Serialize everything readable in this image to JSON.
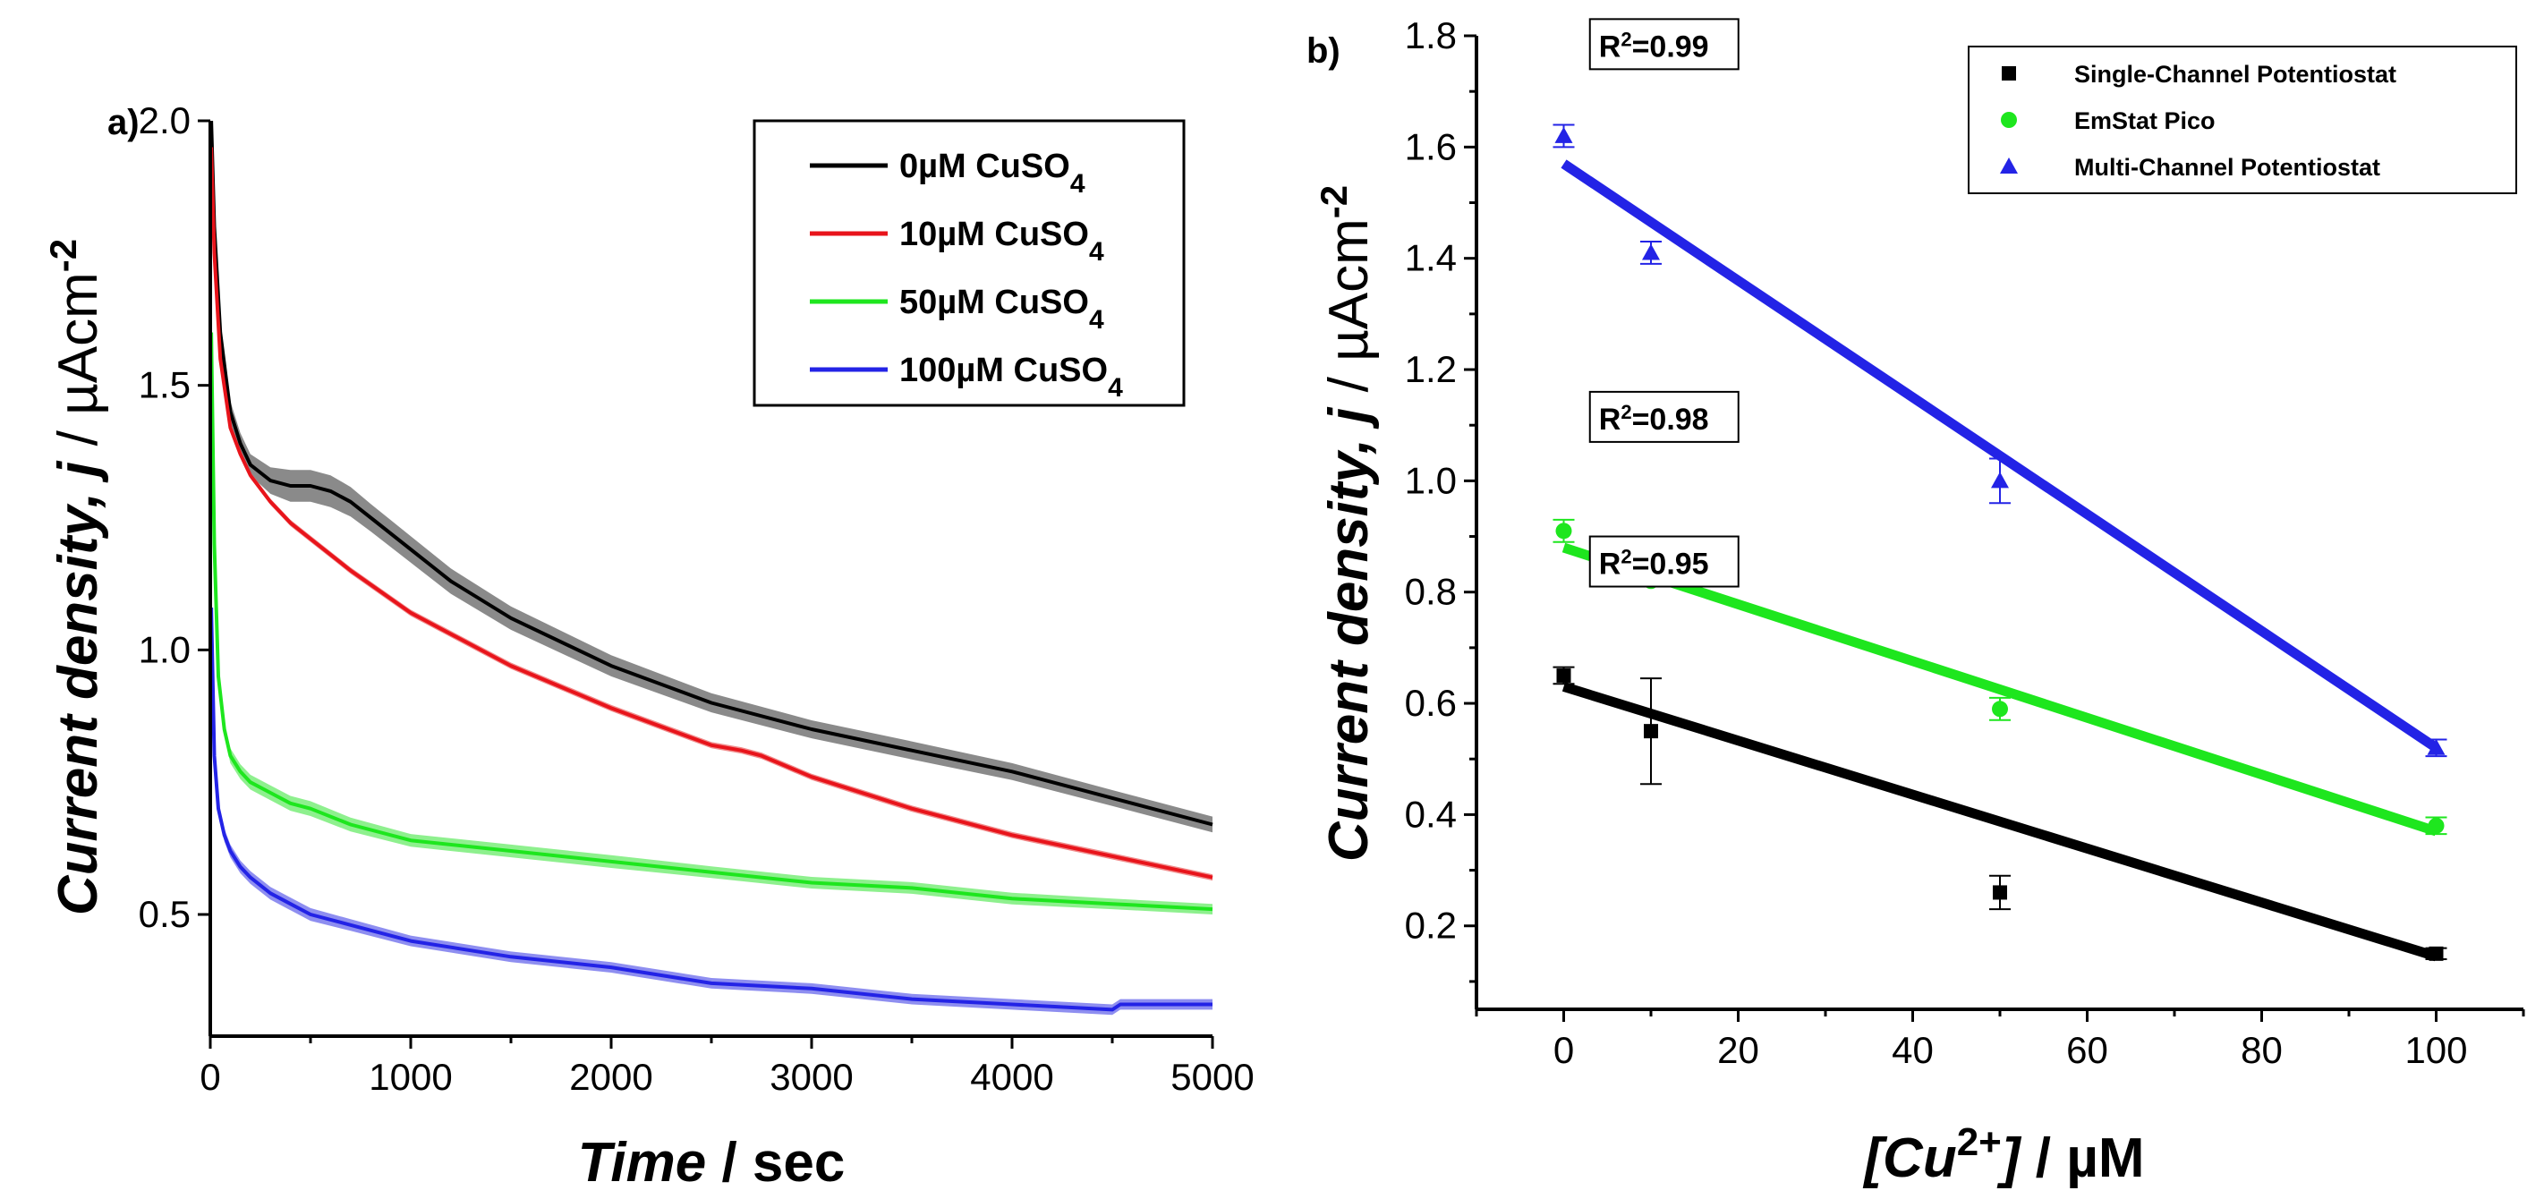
{
  "colors": {
    "black": "#000000",
    "red": "#e8141b",
    "green": "#1ee61e",
    "blue": "#2323e6",
    "band_black": "#8a8a8a",
    "band_red": "#f08a8a",
    "band_green": "#8ef08e",
    "band_blue": "#8e8ef0"
  },
  "chart_data": [
    {
      "type": "line",
      "panel_label": "a)",
      "xlabel_main": "Time",
      "xlabel_unit": " / sec",
      "ylabel_main": "Current density, ",
      "ylabel_var": "j",
      "ylabel_unit": " / µAcm",
      "ylabel_exp": "-2",
      "xlim": [
        0,
        5000
      ],
      "ylim": [
        0.27,
        2.0
      ],
      "xticks": [
        0,
        1000,
        2000,
        3000,
        4000,
        5000
      ],
      "yticks": [
        0.5,
        1.0,
        1.5,
        2.0
      ],
      "xtick_labels": [
        "0",
        "1000",
        "2000",
        "3000",
        "4000",
        "5000"
      ],
      "ytick_labels": [
        "0.5",
        "1.0",
        "1.5",
        "2.0"
      ],
      "legend": [
        {
          "label": "0µM CuSO",
          "sub": "4",
          "color": "#000000"
        },
        {
          "label": "10µM CuSO",
          "sub": "4",
          "color": "#e8141b"
        },
        {
          "label": "50µM CuSO",
          "sub": "4",
          "color": "#1ee61e"
        },
        {
          "label": "100µM CuSO",
          "sub": "4",
          "color": "#2323e6"
        }
      ],
      "series": [
        {
          "name": "0µM CuSO4",
          "color": "#000000",
          "band": "#8a8a8a",
          "x": [
            5,
            20,
            50,
            100,
            150,
            200,
            300,
            400,
            500,
            600,
            700,
            800,
            1000,
            1200,
            1500,
            2000,
            2500,
            3000,
            3500,
            4000,
            4500,
            5000
          ],
          "y": [
            2.0,
            1.8,
            1.6,
            1.45,
            1.39,
            1.35,
            1.32,
            1.31,
            1.31,
            1.3,
            1.28,
            1.25,
            1.19,
            1.13,
            1.06,
            0.97,
            0.9,
            0.85,
            0.81,
            0.77,
            0.72,
            0.67
          ],
          "err": [
            0,
            0.005,
            0.01,
            0.02,
            0.02,
            0.02,
            0.025,
            0.03,
            0.03,
            0.03,
            0.028,
            0.026,
            0.025,
            0.024,
            0.022,
            0.02,
            0.018,
            0.017,
            0.017,
            0.016,
            0.015,
            0.015
          ]
        },
        {
          "name": "10µM CuSO4",
          "color": "#e8141b",
          "band": "#f08a8a",
          "x": [
            5,
            20,
            50,
            100,
            150,
            200,
            300,
            400,
            500,
            700,
            1000,
            1500,
            2000,
            2500,
            2650,
            2750,
            3000,
            3500,
            4000,
            4500,
            5000
          ],
          "y": [
            1.95,
            1.75,
            1.55,
            1.42,
            1.37,
            1.33,
            1.28,
            1.24,
            1.21,
            1.15,
            1.07,
            0.97,
            0.89,
            0.82,
            0.81,
            0.8,
            0.76,
            0.7,
            0.65,
            0.61,
            0.57
          ],
          "err": [
            0,
            0.004,
            0.006,
            0.006,
            0.006,
            0.006,
            0.006,
            0.006,
            0.006,
            0.006,
            0.006,
            0.006,
            0.006,
            0.006,
            0.006,
            0.006,
            0.006,
            0.006,
            0.006,
            0.006,
            0.006
          ]
        },
        {
          "name": "50µM CuSO4",
          "color": "#1ee61e",
          "band": "#8ef08e",
          "x": [
            5,
            20,
            40,
            70,
            100,
            150,
            200,
            300,
            400,
            500,
            700,
            1000,
            1500,
            2000,
            2500,
            3000,
            3500,
            4000,
            4500,
            5000
          ],
          "y": [
            1.6,
            1.2,
            0.95,
            0.85,
            0.8,
            0.77,
            0.75,
            0.73,
            0.71,
            0.7,
            0.67,
            0.64,
            0.62,
            0.6,
            0.58,
            0.56,
            0.55,
            0.53,
            0.52,
            0.51
          ],
          "err": [
            0,
            0.006,
            0.01,
            0.012,
            0.014,
            0.014,
            0.014,
            0.014,
            0.014,
            0.014,
            0.013,
            0.012,
            0.012,
            0.012,
            0.011,
            0.011,
            0.011,
            0.011,
            0.01,
            0.01
          ]
        },
        {
          "name": "100µM CuSO4",
          "color": "#2323e6",
          "band": "#8e8ef0",
          "x": [
            5,
            20,
            40,
            70,
            100,
            150,
            200,
            300,
            400,
            500,
            700,
            1000,
            1500,
            2000,
            2500,
            3000,
            3500,
            4000,
            4500,
            4540,
            5000
          ],
          "y": [
            1.08,
            0.8,
            0.7,
            0.65,
            0.62,
            0.59,
            0.57,
            0.54,
            0.52,
            0.5,
            0.48,
            0.45,
            0.42,
            0.4,
            0.37,
            0.36,
            0.34,
            0.33,
            0.32,
            0.33,
            0.33
          ],
          "err": [
            0,
            0.006,
            0.01,
            0.012,
            0.012,
            0.012,
            0.012,
            0.012,
            0.012,
            0.012,
            0.011,
            0.01,
            0.01,
            0.01,
            0.01,
            0.01,
            0.01,
            0.01,
            0.01,
            0.01,
            0.01
          ]
        }
      ]
    },
    {
      "type": "scatter",
      "panel_label": "b)",
      "xlabel_main": "[Cu",
      "xlabel_sup": "2+",
      "xlabel_close": "]",
      "xlabel_unit": " / µM",
      "ylabel_main": "Current density, ",
      "ylabel_var": "j",
      "ylabel_unit": " / µAcm",
      "ylabel_exp": "-2",
      "xlim": [
        -10,
        110
      ],
      "ylim": [
        0.05,
        1.8
      ],
      "xticks": [
        0,
        20,
        40,
        60,
        80,
        100
      ],
      "yticks": [
        0.2,
        0.4,
        0.6,
        0.8,
        1.0,
        1.2,
        1.4,
        1.6,
        1.8
      ],
      "xtick_labels": [
        "0",
        "20",
        "40",
        "60",
        "80",
        "100"
      ],
      "ytick_labels": [
        "0.2",
        "0.4",
        "0.6",
        "0.8",
        "1.0",
        "1.2",
        "1.4",
        "1.6",
        "1.8"
      ],
      "legend": [
        {
          "label": "Single-Channel Potentiostat",
          "marker": "square",
          "color": "#000000"
        },
        {
          "label": "EmStat Pico",
          "marker": "circle",
          "color": "#1ee61e"
        },
        {
          "label": "Multi-Channel Potentiostat",
          "marker": "triangle",
          "color": "#2323e6"
        }
      ],
      "series": [
        {
          "name": "Single-Channel Potentiostat",
          "marker": "square",
          "color": "#000000",
          "x": [
            0,
            10,
            50,
            100
          ],
          "y": [
            0.65,
            0.55,
            0.26,
            0.15
          ],
          "err": [
            0.015,
            0.095,
            0.03,
            0.01
          ],
          "fit": {
            "x": [
              0,
              100
            ],
            "y": [
              0.63,
              0.145
            ]
          },
          "r2_text": "=0.95",
          "r2_anchor": [
            3,
            0.9
          ]
        },
        {
          "name": "EmStat Pico",
          "marker": "circle",
          "color": "#1ee61e",
          "x": [
            0,
            10,
            50,
            100
          ],
          "y": [
            0.91,
            0.82,
            0.59,
            0.38
          ],
          "err": [
            0.02,
            0.01,
            0.02,
            0.015
          ],
          "fit": {
            "x": [
              0,
              100
            ],
            "y": [
              0.88,
              0.37
            ]
          },
          "r2_text": "=0.98",
          "r2_anchor": [
            3,
            1.16
          ]
        },
        {
          "name": "Multi-Channel Potentiostat",
          "marker": "triangle",
          "color": "#2323e6",
          "x": [
            0,
            10,
            50,
            100
          ],
          "y": [
            1.62,
            1.41,
            1.0,
            0.52
          ],
          "err": [
            0.02,
            0.02,
            0.04,
            0.015
          ],
          "fit": {
            "x": [
              0,
              100
            ],
            "y": [
              1.57,
              0.52
            ]
          },
          "r2_text": "=0.99",
          "r2_anchor": [
            3,
            1.83
          ]
        }
      ],
      "r2_label": "R"
    }
  ]
}
